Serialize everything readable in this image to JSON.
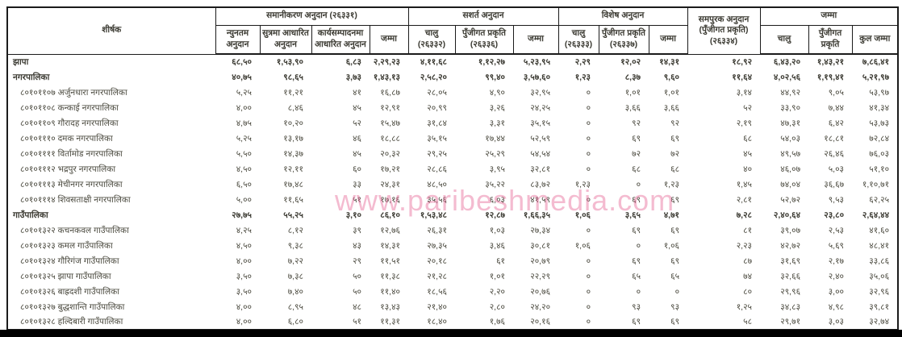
{
  "watermark": {
    "text": "www.paribeshmedia.com",
    "color": "#e45c90"
  },
  "table": {
    "title_column": "शीर्षक",
    "header_groups": [
      {
        "label": "समानीकरण अनुदान (२६३३१)",
        "columns": [
          "न्युनतम अनुदान",
          "सुत्रमा आधारित अनुदान",
          "कार्यसम्पादनमा आधारित अनुदान",
          "जम्मा"
        ]
      },
      {
        "label": "सशर्त अनुदान",
        "columns": [
          "चालु (२६३३२)",
          "पुँजीगत प्रकृति (२६३३६)",
          "जम्मा"
        ]
      },
      {
        "label": "विशेष अनुदान",
        "columns": [
          "चालु (२६३३३)",
          "पुँजीगत प्रकृति (२६३३७)",
          "जम्मा"
        ]
      },
      {
        "label": "समपुरक अनुदान (पुँजीगत प्रकृति) (२६३३४)",
        "columns": []
      },
      {
        "label": "जम्मा",
        "columns": [
          "चालु",
          "पुँजीगत प्रकृति",
          "कुल जम्मा"
        ]
      }
    ],
    "rows": [
      {
        "label": "झापा",
        "type": "summary",
        "values": [
          "६८,५०",
          "१,५३,९०",
          "६,८३",
          "२,२९,२३",
          "४,११,६८",
          "१,१२,२७",
          "५,२३,९५",
          "२,२९",
          "१२,०२",
          "१४,३१",
          "१८,९२",
          "६,४३,२०",
          "१,४३,२१",
          "७,८६,४१"
        ]
      },
      {
        "label": "नगरपालिका",
        "type": "summary",
        "values": [
          "४०,७५",
          "९८,६५",
          "३,७३",
          "१,४३,१३",
          "२,५८,२०",
          "९९,४०",
          "३,५७,६०",
          "१,२३",
          "८,३७",
          "९,६०",
          "११,६४",
          "४,०२,५६",
          "१,१९,४१",
          "५,२१,९७"
        ]
      },
      {
        "label": "८०१०११०७ अर्जुनधारा नगरपालिका",
        "type": "member",
        "values": [
          "५,२५",
          "११,२१",
          "४१",
          "१६,८७",
          "२८,०५",
          "४,९०",
          "३२,९५",
          "०",
          "१,०१",
          "१,०१",
          "३,१४",
          "४४,९२",
          "९,०५",
          "५३,९७"
        ]
      },
      {
        "label": "८०१०११०८ कन्काई नगरपालिका",
        "type": "member",
        "values": [
          "४,००",
          "८,४६",
          "४५",
          "१२,९१",
          "२०,९९",
          "३,२६",
          "२४,२५",
          "०",
          "३,६६",
          "३,६६",
          "५२",
          "३३,९०",
          "७,४४",
          "४१,३४"
        ]
      },
      {
        "label": "८०१०११०९ गौरादह नगरपालिका",
        "type": "member",
        "values": [
          "४,७५",
          "१०,२०",
          "५२",
          "१५,४७",
          "३१,८४",
          "३,३१",
          "३५,१५",
          "०",
          "९२",
          "९२",
          "२,१९",
          "४७,३१",
          "६,४२",
          "५३,७३"
        ]
      },
      {
        "label": "८०१०१११० दमक नगरपालिका",
        "type": "member",
        "values": [
          "५,२५",
          "१३,१७",
          "४६",
          "१८,८८",
          "३५,१५",
          "१७,४४",
          "५२,५९",
          "०",
          "६९",
          "६९",
          "६८",
          "५४,०३",
          "१८,८१",
          "७२,८४"
        ]
      },
      {
        "label": "८०१०११११ विर्तामोड नगरपालिका",
        "type": "member",
        "values": [
          "५,५०",
          "१४,३७",
          "४५",
          "२०,३२",
          "२९,२५",
          "२५,२९",
          "५४,५४",
          "०",
          "७२",
          "७२",
          "४५",
          "४९,५७",
          "२६,४६",
          "७६,०३"
        ]
      },
      {
        "label": "८०१०१११२ भद्रपुर नगरपालिका",
        "type": "member",
        "values": [
          "४,५०",
          "१२,११",
          "६०",
          "१७,२१",
          "२८,८६",
          "३,९५",
          "३२,८१",
          "०",
          "६८",
          "६८",
          "४०",
          "४६,०७",
          "५,०३",
          "५१,१०"
        ]
      },
      {
        "label": "८०१०१११३ मेचीनगर नगरपालिका",
        "type": "member",
        "values": [
          "६,५०",
          "१७,४८",
          "३३",
          "२४,३१",
          "४८,५०",
          "३५,२२",
          "८३,७२",
          "१,२३",
          "०",
          "१,२३",
          "१,४५",
          "७४,०४",
          "३६,६७",
          "१,१०,७१"
        ]
      },
      {
        "label": "८०१०१११४ शिवसताक्षी नगरपालिका",
        "type": "member",
        "values": [
          "५,००",
          "११,६५",
          "५१",
          "१७,१६",
          "३५,५६",
          "६,०३",
          "४१,५९",
          "०",
          "६९",
          "६९",
          "२,८१",
          "५२,७२",
          "९,५३",
          "६२,२५"
        ]
      },
      {
        "label": "गाउँपालिका",
        "type": "summary",
        "values": [
          "२७,७५",
          "५५,२५",
          "३,१०",
          "८६,१०",
          "१,५३,४८",
          "१२,८७",
          "१,६६,३५",
          "१,०६",
          "३,६५",
          "४,७१",
          "७,२८",
          "२,४०,६४",
          "२३,८०",
          "२,६४,४४"
        ]
      },
      {
        "label": "८०१०१३२२ कचनकवल गाउँपालिका",
        "type": "member",
        "values": [
          "४,२५",
          "८,१२",
          "३९",
          "१२,७६",
          "२६,३१",
          "१,०३",
          "२७,३४",
          "०",
          "६९",
          "६९",
          "८१",
          "३९,०७",
          "२,५३",
          "४१,६०"
        ]
      },
      {
        "label": "८०१०१३२३ कमल गाउँपालिका",
        "type": "member",
        "values": [
          "४,५०",
          "९,३८",
          "४३",
          "१४,३१",
          "२७,३५",
          "३,४६",
          "३०,८१",
          "१,०६",
          "०",
          "१,०६",
          "२,२३",
          "४२,७२",
          "५,६९",
          "४८,४१"
        ]
      },
      {
        "label": "८०१०१३२४ गौरिगंज गाउँपालिका",
        "type": "member",
        "values": [
          "४,००",
          "७,२२",
          "२९",
          "११,५१",
          "२०,१८",
          "६१",
          "२०,७९",
          "०",
          "६९",
          "६९",
          "८७",
          "३१,६९",
          "२,१७",
          "३३,८६"
        ]
      },
      {
        "label": "८०१०१३२५ झापा गाउँपालिका",
        "type": "member",
        "values": [
          "३,५०",
          "७,३८",
          "५०",
          "११,३८",
          "२१,२८",
          "१,०१",
          "२२,२९",
          "०",
          "६५",
          "६५",
          "७४",
          "३२,६६",
          "२,४०",
          "३५,०६"
        ]
      },
      {
        "label": "८०१०१३२६ बाह्रदशी गाउँपालिका",
        "type": "member",
        "values": [
          "३,५०",
          "७,४०",
          "५०",
          "११,४०",
          "१८,५६",
          "२,२०",
          "२०,७६",
          "०",
          "०",
          "०",
          "८०",
          "२९,९६",
          "३,००",
          "३२,९६"
        ]
      },
      {
        "label": "८०१०१३२७ बुद्धशान्ति गाउँपालिका",
        "type": "member",
        "values": [
          "४,००",
          "८,९५",
          "४८",
          "१३,४३",
          "२१,४०",
          "२,८०",
          "२४,२०",
          "०",
          "९३",
          "९३",
          "१,२५",
          "३४,८३",
          "४,९८",
          "३९,८१"
        ]
      },
      {
        "label": "८०१०१३२८ हल्दिबारी गाउँपालिका",
        "type": "member",
        "values": [
          "४,००",
          "६,८०",
          "५१",
          "११,३१",
          "१८,४०",
          "१,७६",
          "२०,१६",
          "०",
          "६९",
          "६९",
          "५८",
          "२९,७१",
          "३,०३",
          "३२,७४"
        ]
      }
    ]
  }
}
